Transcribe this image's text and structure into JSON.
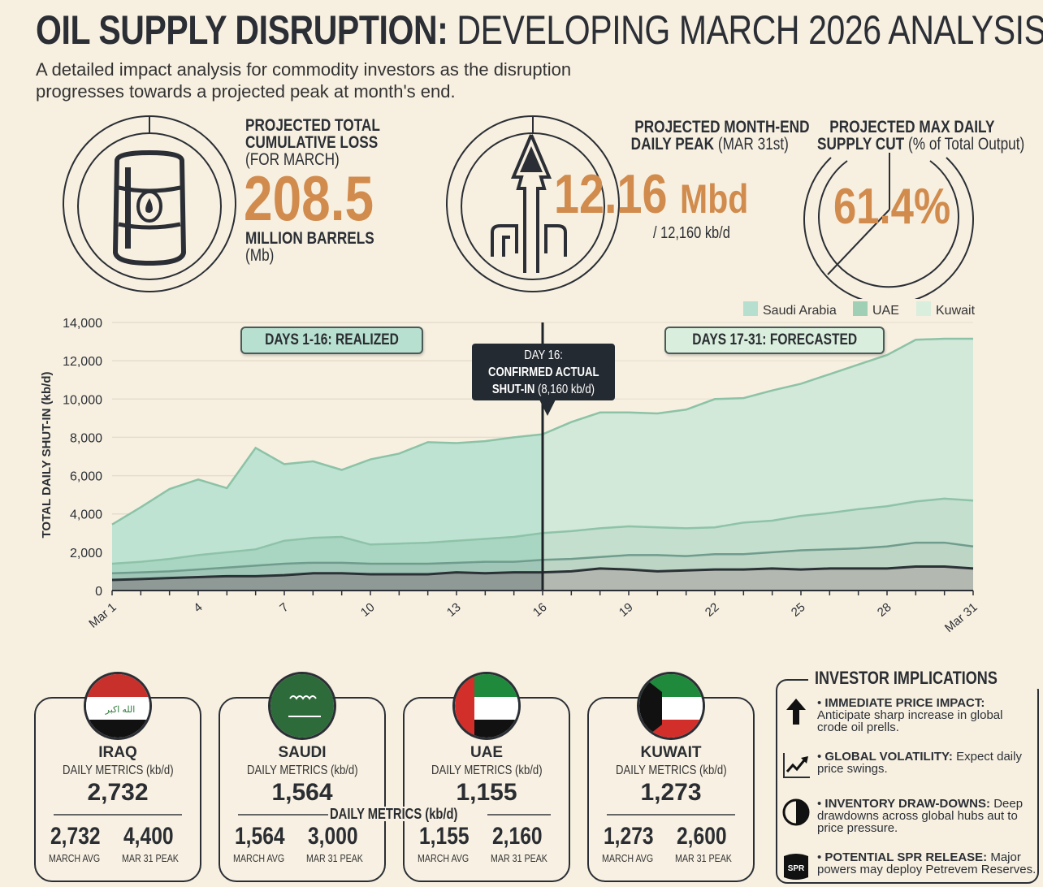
{
  "header": {
    "title_bold": "OIL SUPPLY DISRUPTION:",
    "title_light": "DEVELOPING MARCH 2026 ANALYSIS",
    "subtitle": "A detailed impact analysis for commodity investors as the disruption progresses towards a projected peak at month's end."
  },
  "kpis": {
    "loss": {
      "label1": "PROJECTED TOTAL",
      "label2": "CUMULATIVE LOSS",
      "label3": "(FOR MARCH)",
      "value": "208.5",
      "unit": "MILLION BARRELS",
      "unit2": "(Mb)",
      "icon": "oil-barrel-icon"
    },
    "peak": {
      "label1": "PROJECTED MONTH-END",
      "label2_bold": "DAILY PEAK",
      "label2_light": "(MAR 31st)",
      "value": "12.16",
      "unit": "Mbd",
      "sub": "/ 12,160 kb/d",
      "icon": "rising-arrow-pipeline-icon"
    },
    "cut": {
      "label1": "PROJECTED MAX DAILY",
      "label2_bold": "SUPPLY CUT",
      "label2_light": "(% of Total Output)",
      "value": "61.4%",
      "fraction": 0.614
    }
  },
  "chart_data": {
    "type": "area",
    "stacked": true,
    "ylabel": "TOTAL DAILY SHUT-IN (kb/d)",
    "xlabel": "",
    "ylim": [
      0,
      14000
    ],
    "yticks": [
      "0",
      "2,000",
      "4,000",
      "6,000",
      "8,000",
      "10,000",
      "12,000",
      "14,000"
    ],
    "xtick_labels": [
      "Mar 1",
      "4",
      "7",
      "10",
      "13",
      "16",
      "19",
      "22",
      "25",
      "28",
      "Mar 31"
    ],
    "xtick_days": [
      1,
      4,
      7,
      10,
      13,
      16,
      19,
      22,
      25,
      28,
      31
    ],
    "x_days": [
      1,
      2,
      3,
      4,
      5,
      6,
      7,
      8,
      9,
      10,
      11,
      12,
      13,
      14,
      15,
      16,
      17,
      18,
      19,
      20,
      21,
      22,
      23,
      24,
      25,
      26,
      27,
      28,
      29,
      30,
      31
    ],
    "grid": true,
    "legend_position": "top-right",
    "legend": [
      {
        "name": "Saudi Arabia",
        "color": "#b6dfd0"
      },
      {
        "name": "UAE",
        "color": "#9fd0b6"
      },
      {
        "name": "Kuwait",
        "color": "#d9eedd"
      }
    ],
    "series": [
      {
        "color": "#8f9a96",
        "values": [
          550,
          600,
          650,
          700,
          750,
          750,
          800,
          900,
          900,
          850,
          850,
          850,
          950,
          900,
          950,
          950,
          1000,
          1150,
          1100,
          1000,
          1050,
          1100,
          1100,
          1150,
          1100,
          1150,
          1150,
          1150,
          1250,
          1250,
          1150
        ]
      },
      {
        "name": "Kuwait",
        "color": "#9fc6b6",
        "values": [
          350,
          350,
          350,
          400,
          450,
          550,
          600,
          550,
          550,
          550,
          550,
          550,
          500,
          600,
          550,
          650,
          650,
          600,
          750,
          850,
          750,
          800,
          800,
          850,
          1000,
          1000,
          1050,
          1150,
          1250,
          1250,
          1150
        ]
      },
      {
        "name": "UAE",
        "color": "#a9d6c2",
        "values": [
          500,
          550,
          650,
          750,
          800,
          850,
          1200,
          1300,
          1350,
          1000,
          1050,
          1100,
          1150,
          1200,
          1300,
          1400,
          1450,
          1500,
          1500,
          1450,
          1450,
          1400,
          1650,
          1650,
          1800,
          1900,
          2050,
          2100,
          2150,
          2300,
          2400
        ]
      },
      {
        "name": "Saudi Arabia",
        "color": "#bfe3d3",
        "values": [
          2050,
          2850,
          3650,
          3950,
          3350,
          5300,
          4000,
          4000,
          3500,
          4450,
          4700,
          5250,
          5100,
          5100,
          5200,
          5160,
          5700,
          6050,
          5950,
          5950,
          6200,
          6700,
          6500,
          6800,
          6900,
          7250,
          7550,
          7900,
          8450,
          8350,
          8450
        ]
      }
    ],
    "divider_day": 16,
    "annotations": {
      "realized": "DAYS 1-16: REALIZED",
      "forecast": "DAYS 17-31: FORECASTED",
      "callout_line1": "DAY 16:",
      "callout_line2": "CONFIRMED ACTUAL",
      "callout_line3_bold": "SHUT-IN",
      "callout_line3_light": "(8,160 kb/d)"
    }
  },
  "countries": [
    {
      "name": "IRAQ",
      "sub": "DAILY METRICS (kb/d)",
      "value": "2,732",
      "avg": "2,732",
      "avg_label": "MARCH AVG",
      "peak": "4,400",
      "peak_label": "MAR 31 PEAK",
      "flag": "iraq-flag",
      "flag_text": "الله اكبر"
    },
    {
      "name": "SAUDI",
      "sub": "DAILY METRICS (kb/d)",
      "value": "1,564",
      "avg": "1,564",
      "avg_label": "MARCH AVG",
      "peak": "3,000",
      "peak_label": "MAR 31 PEAK",
      "flag": "saudi-flag"
    },
    {
      "name": "UAE",
      "sub": "DAILY METRICS (kb/d)",
      "value": "1,155",
      "avg": "1,155",
      "avg_label": "MARCH AVG",
      "peak": "2,160",
      "peak_label": "MAR 31 PEAK",
      "flag": "uae-flag"
    },
    {
      "name": "KUWAIT",
      "sub": "DAILY METRICS (kb/d)",
      "value": "1,273",
      "avg": "1,273",
      "avg_label": "MARCH AVG",
      "peak": "2,600",
      "peak_label": "MAR 31 PEAK",
      "flag": "kuwait-flag"
    }
  ],
  "floating_label": "DAILY METRICS (kb/d)",
  "implications": {
    "title": "INVESTOR IMPLICATIONS",
    "items": [
      {
        "icon": "up-arrow-icon",
        "bold": "IMMEDIATE PRICE IMPACT:",
        "text": "Anticipate sharp increase in global crode oil prells."
      },
      {
        "icon": "trend-chart-icon",
        "bold": "GLOBAL VOLATILITY:",
        "text": "Expect daily price swings."
      },
      {
        "icon": "half-circle-icon",
        "bold": "INVENTORY DRAW-DOWNS:",
        "text": "Deep drawdowns across global hubs aut to price pressure."
      },
      {
        "icon": "spr-barrel-icon",
        "bold": "POTENTIAL SPR RELEASE:",
        "text": "Major powers may deploy Petrevem Reserves.",
        "icon_text": "SPR"
      }
    ]
  },
  "colors": {
    "background": "#f7f0e1",
    "accent": "#d18b4d",
    "dark": "#2b2f35"
  }
}
